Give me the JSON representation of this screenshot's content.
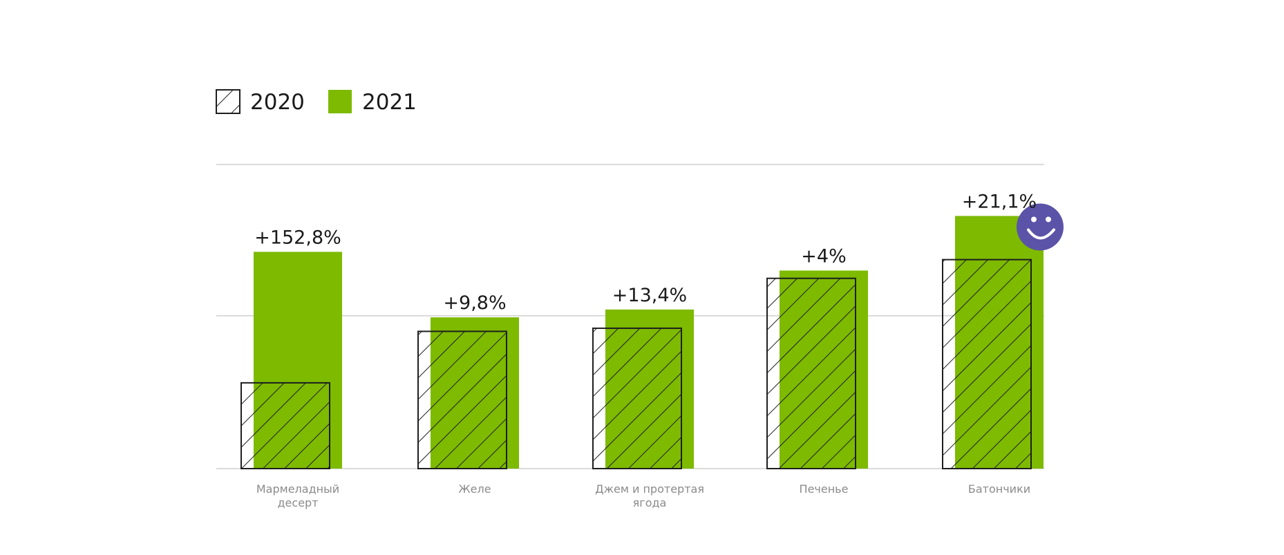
{
  "chart_data": {
    "type": "bar",
    "categories": [
      [
        "Мармеладный",
        "десерт"
      ],
      [
        "Желе"
      ],
      [
        "Джем и протертая",
        "ягода"
      ],
      [
        "Печенье"
      ],
      [
        "Батончики"
      ]
    ],
    "series": [
      {
        "name": "2020",
        "values": [
          55,
          88,
          90,
          122,
          134
        ],
        "style": "hatched"
      },
      {
        "name": "2021",
        "values": [
          139,
          97,
          102,
          127,
          162
        ],
        "style": "solid"
      }
    ],
    "annotations": [
      "+152,8%",
      "+9,8%",
      "+13,4%",
      "+4%",
      "+21,1%"
    ],
    "ylim": [
      0,
      195
    ],
    "gridlines": [
      0,
      98,
      195
    ],
    "highlight_index": 4,
    "highlight_icon": "smiley-face-icon",
    "colors": {
      "solid": "#7dba00",
      "hatch_stroke": "#1e1e1e",
      "grid": "#cfcfcf",
      "smiley": "#5b53a8"
    }
  }
}
